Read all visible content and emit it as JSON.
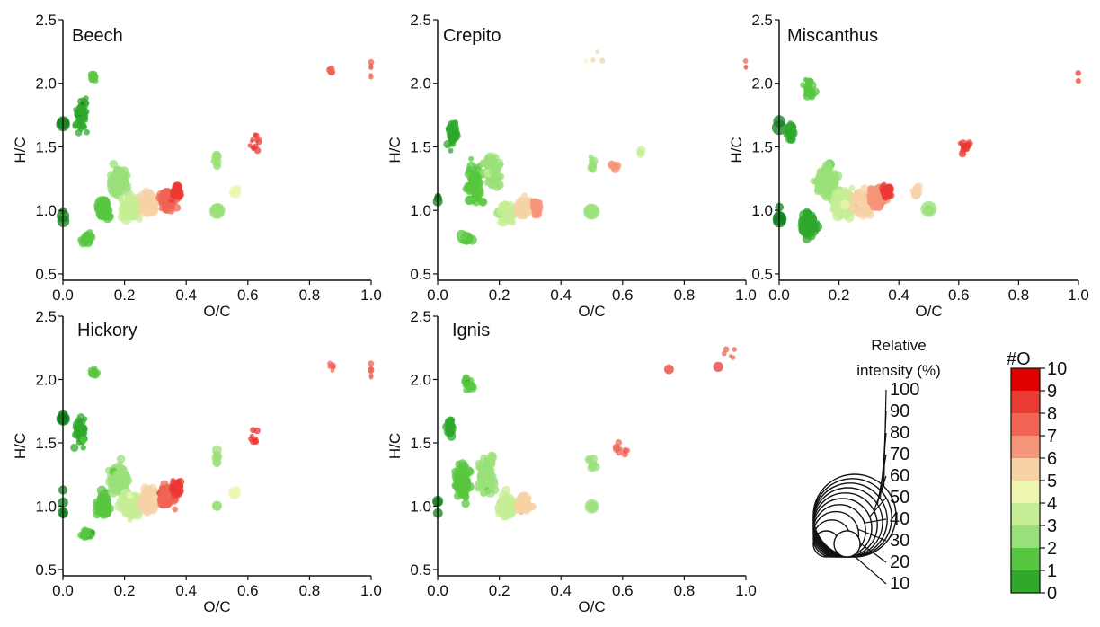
{
  "chart_data": [
    {
      "type": "scatter",
      "title": "Beech",
      "xlabel": "O/C",
      "ylabel": "H/C",
      "xlim": [
        0,
        1.0
      ],
      "ylim": [
        0.45,
        2.5
      ],
      "x_ticks": [
        "0.0",
        "0.2",
        "0.4",
        "0.6",
        "0.8",
        "1.0"
      ],
      "y_ticks": [
        "0.5",
        "1.0",
        "1.5",
        "2.0",
        "2.5"
      ],
      "grid": false,
      "clusters": [
        {
          "x": 0.0,
          "y": 1.68,
          "n": 8,
          "sx": 0.003,
          "sy": 0.05,
          "o": 0,
          "s": 0.25
        },
        {
          "x": 0.0,
          "y": 1.0,
          "n": 10,
          "sx": 0.003,
          "sy": 0.3,
          "o": 0,
          "s": 0.2
        },
        {
          "x": 0.06,
          "y": 1.75,
          "n": 60,
          "sx": 0.03,
          "sy": 0.22,
          "o": 1,
          "s": 0.08
        },
        {
          "x": 0.1,
          "y": 2.05,
          "n": 18,
          "sx": 0.015,
          "sy": 0.05,
          "o": 2,
          "s": 0.1
        },
        {
          "x": 0.08,
          "y": 0.78,
          "n": 30,
          "sx": 0.03,
          "sy": 0.06,
          "o": 2,
          "s": 0.12
        },
        {
          "x": 0.13,
          "y": 1.02,
          "n": 50,
          "sx": 0.03,
          "sy": 0.15,
          "o": 2,
          "s": 0.14
        },
        {
          "x": 0.18,
          "y": 1.22,
          "n": 80,
          "sx": 0.05,
          "sy": 0.2,
          "o": 3,
          "s": 0.14
        },
        {
          "x": 0.22,
          "y": 1.02,
          "n": 100,
          "sx": 0.05,
          "sy": 0.14,
          "o": 4,
          "s": 0.14
        },
        {
          "x": 0.28,
          "y": 1.06,
          "n": 140,
          "sx": 0.04,
          "sy": 0.13,
          "o": 6,
          "s": 0.12
        },
        {
          "x": 0.34,
          "y": 1.08,
          "n": 150,
          "sx": 0.035,
          "sy": 0.12,
          "o": 8,
          "s": 0.1
        },
        {
          "x": 0.37,
          "y": 1.15,
          "n": 60,
          "sx": 0.02,
          "sy": 0.08,
          "o": 9,
          "s": 0.1
        },
        {
          "x": 0.5,
          "y": 1.0,
          "n": 4,
          "sx": 0.005,
          "sy": 0.02,
          "o": 3,
          "s": 0.35
        },
        {
          "x": 0.5,
          "y": 1.4,
          "n": 10,
          "sx": 0.01,
          "sy": 0.1,
          "o": 3,
          "s": 0.12
        },
        {
          "x": 0.56,
          "y": 1.15,
          "n": 4,
          "sx": 0.01,
          "sy": 0.04,
          "o": 5,
          "s": 0.2
        },
        {
          "x": 0.62,
          "y": 1.55,
          "n": 12,
          "sx": 0.03,
          "sy": 0.12,
          "o": 9,
          "s": 0.06
        },
        {
          "x": 0.87,
          "y": 2.1,
          "n": 6,
          "sx": 0.02,
          "sy": 0.04,
          "o": 8,
          "s": 0.07
        },
        {
          "x": 1.0,
          "y": 2.1,
          "n": 8,
          "sx": 0.003,
          "sy": 0.2,
          "o": 8,
          "s": 0.06
        }
      ]
    },
    {
      "type": "scatter",
      "title": "Crepito",
      "xlabel": "O/C",
      "ylabel": "H/C",
      "xlim": [
        0,
        1.0
      ],
      "ylim": [
        0.45,
        2.5
      ],
      "x_ticks": [
        "0.0",
        "0.2",
        "0.4",
        "0.6",
        "0.8",
        "1.0"
      ],
      "y_ticks": [
        "0.5",
        "1.0",
        "1.5",
        "2.0",
        "2.5"
      ],
      "grid": false,
      "clusters": [
        {
          "x": 0.0,
          "y": 1.0,
          "n": 10,
          "sx": 0.003,
          "sy": 0.3,
          "o": 0,
          "s": 0.18
        },
        {
          "x": 0.05,
          "y": 1.6,
          "n": 40,
          "sx": 0.025,
          "sy": 0.2,
          "o": 1,
          "s": 0.1
        },
        {
          "x": 0.09,
          "y": 0.78,
          "n": 20,
          "sx": 0.03,
          "sy": 0.05,
          "o": 2,
          "s": 0.14
        },
        {
          "x": 0.12,
          "y": 1.2,
          "n": 90,
          "sx": 0.04,
          "sy": 0.25,
          "o": 2,
          "s": 0.12
        },
        {
          "x": 0.18,
          "y": 1.3,
          "n": 70,
          "sx": 0.05,
          "sy": 0.22,
          "o": 3,
          "s": 0.12
        },
        {
          "x": 0.22,
          "y": 0.98,
          "n": 70,
          "sx": 0.04,
          "sy": 0.14,
          "o": 4,
          "s": 0.14
        },
        {
          "x": 0.28,
          "y": 1.02,
          "n": 90,
          "sx": 0.035,
          "sy": 0.12,
          "o": 6,
          "s": 0.12
        },
        {
          "x": 0.32,
          "y": 1.02,
          "n": 50,
          "sx": 0.02,
          "sy": 0.1,
          "o": 7,
          "s": 0.1
        },
        {
          "x": 0.5,
          "y": 1.0,
          "n": 3,
          "sx": 0.005,
          "sy": 0.02,
          "o": 3,
          "s": 0.4
        },
        {
          "x": 0.5,
          "y": 1.35,
          "n": 8,
          "sx": 0.01,
          "sy": 0.1,
          "o": 3,
          "s": 0.12
        },
        {
          "x": 0.57,
          "y": 1.35,
          "n": 8,
          "sx": 0.03,
          "sy": 0.05,
          "o": 7,
          "s": 0.1
        },
        {
          "x": 0.66,
          "y": 1.45,
          "n": 4,
          "sx": 0.01,
          "sy": 0.05,
          "o": 4,
          "s": 0.12
        },
        {
          "x": 0.5,
          "y": 2.2,
          "n": 4,
          "sx": 0.1,
          "sy": 0.1,
          "o": 6,
          "s": 0.05
        },
        {
          "x": 1.0,
          "y": 2.1,
          "n": 6,
          "sx": 0.003,
          "sy": 0.15,
          "o": 8,
          "s": 0.05
        }
      ]
    },
    {
      "type": "scatter",
      "title": "Miscanthus",
      "xlabel": "O/C",
      "ylabel": "H/C",
      "xlim": [
        0,
        1.0
      ],
      "ylim": [
        0.45,
        2.5
      ],
      "x_ticks": [
        "0.0",
        "0.2",
        "0.4",
        "0.6",
        "0.8",
        "1.0"
      ],
      "y_ticks": [
        "0.5",
        "1.0",
        "1.5",
        "2.0",
        "2.5"
      ],
      "grid": false,
      "clusters": [
        {
          "x": 0.0,
          "y": 1.68,
          "n": 6,
          "sx": 0.003,
          "sy": 0.05,
          "o": 0,
          "s": 0.32
        },
        {
          "x": 0.0,
          "y": 0.95,
          "n": 10,
          "sx": 0.003,
          "sy": 0.15,
          "o": 0,
          "s": 0.3
        },
        {
          "x": 0.04,
          "y": 1.62,
          "n": 30,
          "sx": 0.02,
          "sy": 0.12,
          "o": 1,
          "s": 0.14
        },
        {
          "x": 0.1,
          "y": 1.95,
          "n": 40,
          "sx": 0.03,
          "sy": 0.12,
          "o": 2,
          "s": 0.1
        },
        {
          "x": 0.1,
          "y": 0.9,
          "n": 80,
          "sx": 0.04,
          "sy": 0.15,
          "o": 1,
          "s": 0.14
        },
        {
          "x": 0.16,
          "y": 1.22,
          "n": 110,
          "sx": 0.05,
          "sy": 0.2,
          "o": 3,
          "s": 0.14
        },
        {
          "x": 0.22,
          "y": 1.05,
          "n": 130,
          "sx": 0.05,
          "sy": 0.16,
          "o": 4,
          "s": 0.16
        },
        {
          "x": 0.28,
          "y": 1.05,
          "n": 150,
          "sx": 0.04,
          "sy": 0.14,
          "o": 6,
          "s": 0.14
        },
        {
          "x": 0.33,
          "y": 1.1,
          "n": 150,
          "sx": 0.035,
          "sy": 0.12,
          "o": 7,
          "s": 0.12
        },
        {
          "x": 0.36,
          "y": 1.15,
          "n": 60,
          "sx": 0.02,
          "sy": 0.08,
          "o": 9,
          "s": 0.11
        },
        {
          "x": 0.5,
          "y": 1.0,
          "n": 3,
          "sx": 0.005,
          "sy": 0.02,
          "o": 3,
          "s": 0.4
        },
        {
          "x": 0.46,
          "y": 1.15,
          "n": 10,
          "sx": 0.02,
          "sy": 0.06,
          "o": 6,
          "s": 0.12
        },
        {
          "x": 0.62,
          "y": 1.5,
          "n": 14,
          "sx": 0.04,
          "sy": 0.08,
          "o": 9,
          "s": 0.08
        },
        {
          "x": 1.0,
          "y": 2.05,
          "n": 8,
          "sx": 0.003,
          "sy": 0.18,
          "o": 8,
          "s": 0.06
        }
      ]
    },
    {
      "type": "scatter",
      "title": "Hickory",
      "xlabel": "O/C",
      "ylabel": "H/C",
      "xlim": [
        0,
        1.0
      ],
      "ylim": [
        0.45,
        2.5
      ],
      "x_ticks": [
        "0.0",
        "0.2",
        "0.4",
        "0.6",
        "0.8",
        "1.0"
      ],
      "y_ticks": [
        "0.5",
        "1.0",
        "1.5",
        "2.0",
        "2.5"
      ],
      "grid": false,
      "clusters": [
        {
          "x": 0.0,
          "y": 1.7,
          "n": 6,
          "sx": 0.003,
          "sy": 0.05,
          "o": 0,
          "s": 0.28
        },
        {
          "x": 0.0,
          "y": 1.0,
          "n": 10,
          "sx": 0.003,
          "sy": 0.3,
          "o": 0,
          "s": 0.18
        },
        {
          "x": 0.06,
          "y": 1.6,
          "n": 50,
          "sx": 0.03,
          "sy": 0.2,
          "o": 1,
          "s": 0.09
        },
        {
          "x": 0.1,
          "y": 2.05,
          "n": 16,
          "sx": 0.015,
          "sy": 0.05,
          "o": 2,
          "s": 0.1
        },
        {
          "x": 0.08,
          "y": 0.78,
          "n": 25,
          "sx": 0.03,
          "sy": 0.06,
          "o": 2,
          "s": 0.12
        },
        {
          "x": 0.13,
          "y": 1.02,
          "n": 50,
          "sx": 0.03,
          "sy": 0.15,
          "o": 2,
          "s": 0.14
        },
        {
          "x": 0.18,
          "y": 1.2,
          "n": 80,
          "sx": 0.05,
          "sy": 0.2,
          "o": 3,
          "s": 0.14
        },
        {
          "x": 0.22,
          "y": 1.02,
          "n": 100,
          "sx": 0.05,
          "sy": 0.14,
          "o": 4,
          "s": 0.14
        },
        {
          "x": 0.28,
          "y": 1.06,
          "n": 140,
          "sx": 0.04,
          "sy": 0.13,
          "o": 6,
          "s": 0.12
        },
        {
          "x": 0.34,
          "y": 1.08,
          "n": 150,
          "sx": 0.035,
          "sy": 0.12,
          "o": 8,
          "s": 0.1
        },
        {
          "x": 0.37,
          "y": 1.15,
          "n": 60,
          "sx": 0.02,
          "sy": 0.08,
          "o": 9,
          "s": 0.1
        },
        {
          "x": 0.5,
          "y": 1.0,
          "n": 3,
          "sx": 0.005,
          "sy": 0.02,
          "o": 3,
          "s": 0.3
        },
        {
          "x": 0.5,
          "y": 1.4,
          "n": 10,
          "sx": 0.01,
          "sy": 0.1,
          "o": 3,
          "s": 0.12
        },
        {
          "x": 0.56,
          "y": 1.12,
          "n": 4,
          "sx": 0.01,
          "sy": 0.04,
          "o": 5,
          "s": 0.2
        },
        {
          "x": 0.62,
          "y": 1.55,
          "n": 10,
          "sx": 0.03,
          "sy": 0.1,
          "o": 9,
          "s": 0.06
        },
        {
          "x": 0.87,
          "y": 2.1,
          "n": 6,
          "sx": 0.02,
          "sy": 0.06,
          "o": 8,
          "s": 0.06
        },
        {
          "x": 1.0,
          "y": 2.1,
          "n": 8,
          "sx": 0.003,
          "sy": 0.2,
          "o": 8,
          "s": 0.06
        }
      ]
    },
    {
      "type": "scatter",
      "title": "Ignis",
      "xlabel": "O/C",
      "ylabel": "H/C",
      "xlim": [
        0,
        1.0
      ],
      "ylim": [
        0.45,
        2.5
      ],
      "x_ticks": [
        "0.0",
        "0.2",
        "0.4",
        "0.6",
        "0.8",
        "1.0"
      ],
      "y_ticks": [
        "0.5",
        "1.0",
        "1.5",
        "2.0",
        "2.5"
      ],
      "grid": false,
      "clusters": [
        {
          "x": 0.0,
          "y": 1.0,
          "n": 10,
          "sx": 0.003,
          "sy": 0.3,
          "o": 0,
          "s": 0.18
        },
        {
          "x": 0.04,
          "y": 1.62,
          "n": 30,
          "sx": 0.02,
          "sy": 0.12,
          "o": 1,
          "s": 0.12
        },
        {
          "x": 0.08,
          "y": 1.2,
          "n": 80,
          "sx": 0.04,
          "sy": 0.25,
          "o": 2,
          "s": 0.12
        },
        {
          "x": 0.1,
          "y": 1.95,
          "n": 25,
          "sx": 0.03,
          "sy": 0.12,
          "o": 2,
          "s": 0.08
        },
        {
          "x": 0.16,
          "y": 1.25,
          "n": 90,
          "sx": 0.05,
          "sy": 0.25,
          "o": 3,
          "s": 0.12
        },
        {
          "x": 0.22,
          "y": 1.0,
          "n": 70,
          "sx": 0.04,
          "sy": 0.14,
          "o": 4,
          "s": 0.14
        },
        {
          "x": 0.28,
          "y": 1.02,
          "n": 70,
          "sx": 0.035,
          "sy": 0.12,
          "o": 6,
          "s": 0.11
        },
        {
          "x": 0.5,
          "y": 1.0,
          "n": 3,
          "sx": 0.005,
          "sy": 0.02,
          "o": 3,
          "s": 0.35
        },
        {
          "x": 0.5,
          "y": 1.35,
          "n": 8,
          "sx": 0.02,
          "sy": 0.1,
          "o": 3,
          "s": 0.12
        },
        {
          "x": 0.6,
          "y": 1.45,
          "n": 10,
          "sx": 0.04,
          "sy": 0.08,
          "o": 8,
          "s": 0.07
        },
        {
          "x": 0.75,
          "y": 2.08,
          "n": 1,
          "sx": 0.001,
          "sy": 0.001,
          "o": 9,
          "s": 0.16
        },
        {
          "x": 0.91,
          "y": 2.1,
          "n": 1,
          "sx": 0.001,
          "sy": 0.001,
          "o": 9,
          "s": 0.18
        },
        {
          "x": 0.95,
          "y": 2.2,
          "n": 5,
          "sx": 0.05,
          "sy": 0.1,
          "o": 8,
          "s": 0.05
        }
      ]
    }
  ],
  "legend_size": {
    "title_line1": "Relative",
    "title_line2": "intensity (%)",
    "values": [
      "100",
      "90",
      "80",
      "70",
      "60",
      "50",
      "40",
      "30",
      "20",
      "10"
    ]
  },
  "legend_color": {
    "title": "#O",
    "values": [
      "10",
      "9",
      "8",
      "7",
      "6",
      "5",
      "4",
      "3",
      "2",
      "1",
      "0"
    ],
    "colors": [
      "#e00000",
      "#ea3a34",
      "#f06454",
      "#f49478",
      "#f7d2a5",
      "#eff6b0",
      "#c6ee96",
      "#99e07a",
      "#58c740",
      "#2fa82c",
      "#0c7f1a"
    ]
  }
}
